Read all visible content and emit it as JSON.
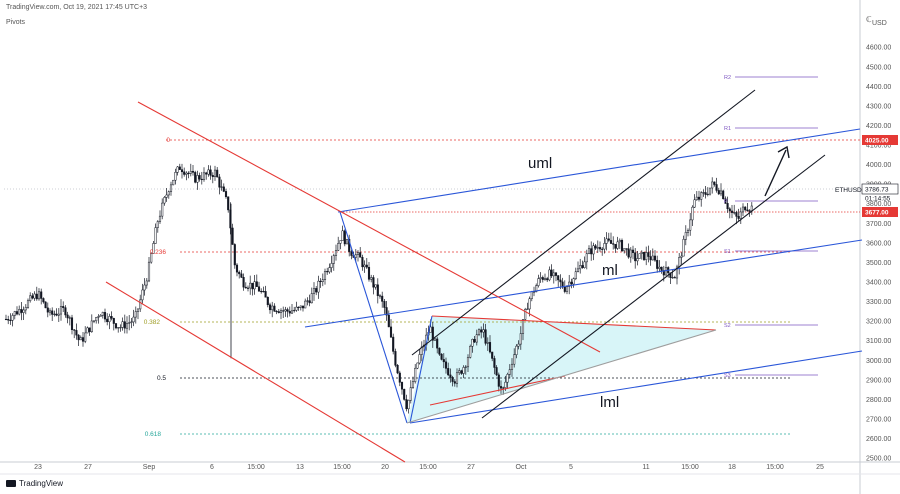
{
  "header": {
    "text": "TradingView.com, Oct 19, 2021 17:45 UTC+3"
  },
  "indicator": {
    "label": "Pivots"
  },
  "brand": {
    "label": "TradingView"
  },
  "currency": "USD",
  "currency_letter": "ℂ",
  "chart_data": {
    "type": "candlestick",
    "symbol": "ETHUSD",
    "ylim": [
      2480,
      4780
    ],
    "y_ticks": [
      4600,
      4500,
      4400,
      4300,
      4200,
      4100,
      4000,
      3900,
      3800,
      3700,
      3600,
      3500,
      3400,
      3300,
      3200,
      3100,
      3000,
      2900,
      2800,
      2700,
      2600,
      2500
    ],
    "x_ticks": [
      "23",
      "27",
      "Sep",
      "6",
      "15:00",
      "13",
      "15:00",
      "20",
      "15:00",
      "27",
      "Oct",
      "5",
      "11",
      "15:00",
      "18",
      "15:00",
      "25"
    ],
    "price_tags": [
      {
        "value": "4025.00",
        "color": "#e53935"
      },
      {
        "value": "3786.73",
        "color": "#131722"
      },
      {
        "value": "01:14:55",
        "color": "#131722"
      },
      {
        "value": "3677.00",
        "color": "#e53935"
      }
    ],
    "fib_levels": [
      {
        "label": "0",
        "color": "#e53935"
      },
      {
        "label": "0.236",
        "color": "#e53935"
      },
      {
        "label": "0.382",
        "color": "#9e9d24"
      },
      {
        "label": "0.5",
        "color": "#131722"
      },
      {
        "label": "0.618",
        "color": "#26a69a"
      }
    ],
    "pivots": [
      {
        "label": "R2",
        "value": 4330
      },
      {
        "label": "R1",
        "value": 4090
      },
      {
        "label": "P",
        "value": 3740
      },
      {
        "label": "S1",
        "value": 3490
      },
      {
        "label": "S2",
        "value": 3130
      },
      {
        "label": "S3",
        "value": 2880
      }
    ],
    "annotations": [
      {
        "text": "uml"
      },
      {
        "text": "ml"
      },
      {
        "text": "lml"
      }
    ],
    "colors": {
      "up": "#131722",
      "down": "#131722",
      "channel": "#2a56d8",
      "downtrend": "#e53935",
      "triangle_fill": "#d8f5f8"
    }
  }
}
